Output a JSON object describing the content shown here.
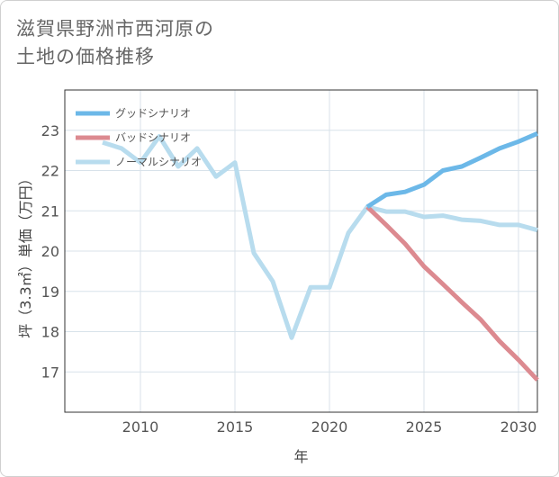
{
  "title_line1": "滋賀県野洲市西河原の",
  "title_line2": "土地の価格推移",
  "chart_data": {
    "type": "line",
    "xlabel": "年",
    "ylabel": "坪（3.3㎡）単価（万円）",
    "xlim": [
      2006,
      2031
    ],
    "ylim": [
      16,
      24
    ],
    "xticks": [
      2010,
      2015,
      2020,
      2025,
      2030
    ],
    "yticks": [
      17,
      18,
      19,
      20,
      21,
      22,
      23
    ],
    "grid": true,
    "legend_position": "top-left",
    "series": [
      {
        "name": "グッドシナリオ",
        "color": "#6cb8e8",
        "x": [
          2022,
          2023,
          2024,
          2025,
          2026,
          2027,
          2028,
          2029,
          2030,
          2031
        ],
        "y": [
          21.1,
          21.4,
          21.47,
          21.65,
          22.0,
          22.1,
          22.32,
          22.55,
          22.72,
          22.92
        ]
      },
      {
        "name": "バッドシナリオ",
        "color": "#dc8a90",
        "x": [
          2022,
          2023,
          2024,
          2025,
          2026,
          2027,
          2028,
          2029,
          2030,
          2031
        ],
        "y": [
          21.1,
          20.65,
          20.18,
          19.62,
          19.18,
          18.73,
          18.3,
          17.76,
          17.3,
          16.8
        ]
      },
      {
        "name": "ノーマルシナリオ",
        "color": "#b8dcee",
        "x": [
          2008,
          2009,
          2010,
          2011,
          2012,
          2013,
          2014,
          2015,
          2016,
          2017,
          2018,
          2019,
          2020,
          2021,
          2022,
          2023,
          2024,
          2025,
          2026,
          2027,
          2028,
          2029,
          2030,
          2031
        ],
        "y": [
          22.7,
          22.55,
          22.2,
          22.85,
          22.1,
          22.55,
          21.85,
          22.2,
          19.95,
          19.25,
          17.85,
          19.1,
          19.1,
          20.45,
          21.1,
          20.98,
          20.98,
          20.85,
          20.88,
          20.78,
          20.75,
          20.65,
          20.65,
          20.52
        ]
      }
    ]
  }
}
